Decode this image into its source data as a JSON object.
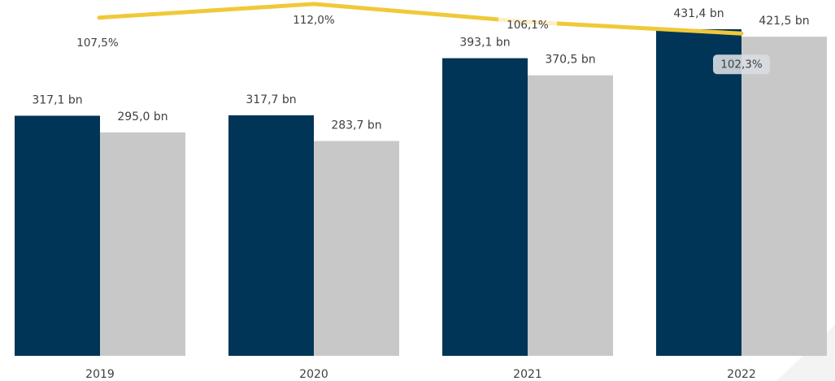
{
  "chart_data": {
    "type": "bar",
    "categories": [
      "2019",
      "2020",
      "2021",
      "2022"
    ],
    "series": [
      {
        "color": "#003557",
        "values": [
          317.1,
          317.7,
          393.1,
          431.4
        ],
        "labels": [
          "317,1 bn",
          "317,7 bn",
          "393,1 bn",
          "431,4 bn"
        ]
      },
      {
        "color": "#c8c8c8",
        "values": [
          295.0,
          283.7,
          370.5,
          421.5
        ],
        "labels": [
          "295,0 bn",
          "283,7 bn",
          "370,5 bn",
          "421,5 bn"
        ]
      }
    ],
    "line": {
      "color": "#f0c93a",
      "values": [
        107.5,
        112.0,
        106.1,
        102.3
      ],
      "labels": [
        "107,5%",
        "112,0%",
        "106,1%",
        "102,3%"
      ]
    },
    "grid": false,
    "legend": "none",
    "bar_ylim": [
      0,
      440
    ],
    "line_ylim": [
      0,
      112.5
    ]
  }
}
